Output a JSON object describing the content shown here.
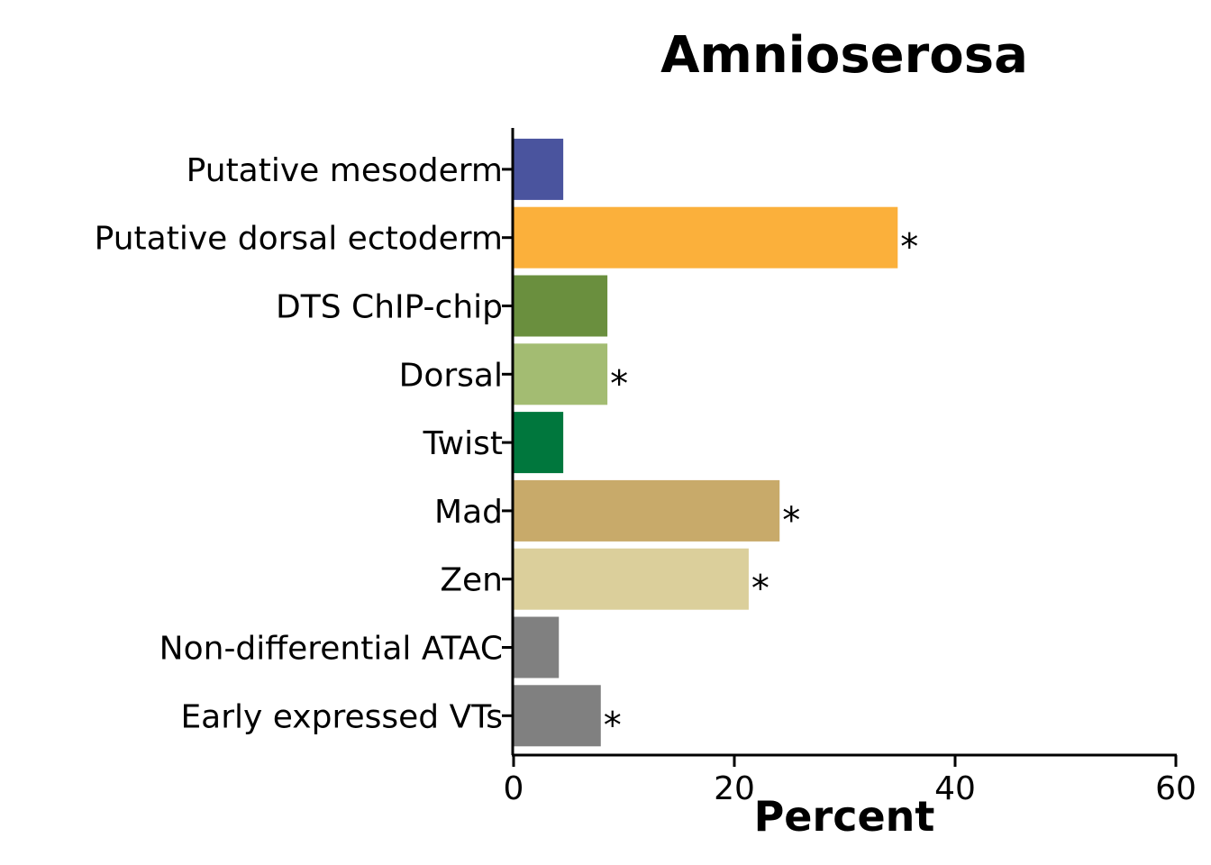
{
  "chart_data": {
    "type": "bar",
    "orientation": "horizontal",
    "title": "Amnioserosa",
    "xlabel": "Percent",
    "ylabel": "",
    "xlim": [
      0,
      60
    ],
    "xticks": [
      "0",
      "20",
      "40",
      "60"
    ],
    "grid": false,
    "categories": [
      "Putative mesoderm",
      "Putative dorsal ectoderm",
      "DTS ChIP-chip",
      "Dorsal",
      "Twist",
      "Mad",
      "Zen",
      "Non-differential ATAC",
      "Early expressed VTs"
    ],
    "values": [
      4.5,
      34.8,
      8.5,
      8.5,
      4.5,
      24.1,
      21.3,
      4.1,
      7.9
    ],
    "significance": [
      "",
      "*",
      "",
      "*",
      "",
      "*",
      "*",
      "",
      "*"
    ],
    "colors": [
      "#4a549e",
      "#fbb03b",
      "#6a8f3e",
      "#a3bc72",
      "#00773d",
      "#c8aa6a",
      "#dbcf9b",
      "#808080",
      "#808080"
    ]
  }
}
